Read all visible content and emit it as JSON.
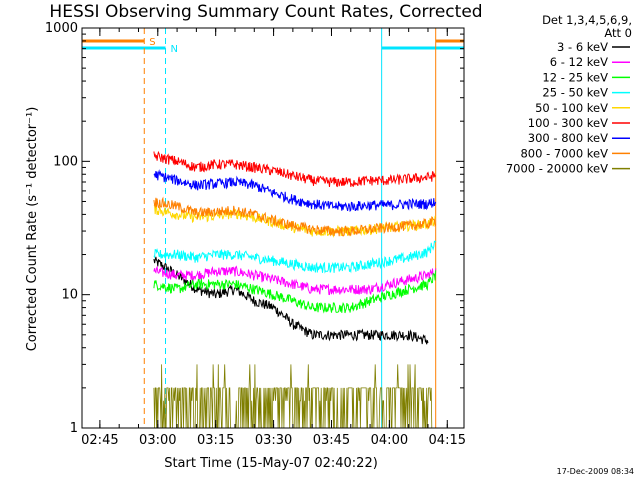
{
  "chart_data": {
    "type": "line",
    "title": "HESSI Observing Summary Count Rates, Corrected",
    "xlabel": "Start Time (15-May-07 02:40:22)",
    "ylabel": "Corrected Count Rate (s⁻¹ detector⁻¹)",
    "yscale": "log",
    "ylim": [
      1,
      1000
    ],
    "y_ticks": [
      "1",
      "10",
      "100",
      "1000"
    ],
    "xlim": [
      "02:40:22",
      "04:19:20"
    ],
    "x_ticks": [
      "02:45",
      "03:00",
      "03:15",
      "03:30",
      "03:45",
      "04:00",
      "04:15"
    ],
    "legend_header": [
      "Det 1,3,4,5,6,9,",
      "Att 0"
    ],
    "legend_placement": "right",
    "footer_date": "17-Dec-2009 08:34",
    "markers": [
      {
        "label": "S",
        "color": "#ff8000",
        "times": [
          "02:56:30",
          "04:12:00"
        ]
      },
      {
        "label": "N",
        "color": "#00e5ff",
        "times": [
          "03:02:00",
          "03:58:00"
        ]
      }
    ],
    "mode_bars": [
      {
        "color": "#ff8000",
        "segments": [
          [
            "02:40:22",
            "02:56:30"
          ],
          [
            "04:12:00",
            "04:19:20"
          ]
        ]
      },
      {
        "color": "#00e5ff",
        "segments": [
          [
            "02:40:22",
            "03:02:00"
          ],
          [
            "03:58:00",
            "04:19:20"
          ]
        ]
      }
    ],
    "series": [
      {
        "name": "3 - 6 keV",
        "color": "#000000",
        "x": [
          "02:59",
          "03:05",
          "03:10",
          "03:15",
          "03:20",
          "03:25",
          "03:30",
          "03:35",
          "03:40",
          "03:45",
          "03:50",
          "03:55",
          "04:00",
          "04:05",
          "04:10"
        ],
        "y": [
          18,
          14,
          11,
          10,
          11,
          9,
          8,
          6,
          5,
          5,
          5,
          5,
          5,
          5,
          4.5
        ]
      },
      {
        "name": "6 - 12 keV",
        "color": "#ff00ff",
        "x": [
          "02:59",
          "03:05",
          "03:10",
          "03:15",
          "03:20",
          "03:25",
          "03:30",
          "03:35",
          "03:40",
          "03:45",
          "03:50",
          "03:55",
          "04:00",
          "04:05",
          "04:10",
          "04:12"
        ],
        "y": [
          15,
          14,
          14,
          15,
          15,
          14,
          13,
          12,
          11,
          11,
          11,
          11,
          12,
          13,
          14,
          15
        ]
      },
      {
        "name": "12 - 25 keV",
        "color": "#00ff00",
        "x": [
          "02:59",
          "03:05",
          "03:10",
          "03:15",
          "03:20",
          "03:25",
          "03:30",
          "03:35",
          "03:40",
          "03:45",
          "03:50",
          "03:55",
          "04:00",
          "04:05",
          "04:10",
          "04:12"
        ],
        "y": [
          12,
          11,
          12,
          12,
          12,
          11,
          10,
          9,
          8,
          8,
          8,
          9,
          10,
          11,
          12,
          14
        ]
      },
      {
        "name": "25 - 50 keV",
        "color": "#00ffff",
        "x": [
          "02:59",
          "03:05",
          "03:10",
          "03:15",
          "03:20",
          "03:25",
          "03:30",
          "03:35",
          "03:40",
          "03:45",
          "03:50",
          "03:55",
          "04:00",
          "04:05",
          "04:10",
          "04:12"
        ],
        "y": [
          20,
          20,
          19,
          20,
          20,
          19,
          18,
          17,
          16,
          16,
          16,
          17,
          18,
          19,
          21,
          25
        ]
      },
      {
        "name": "50 - 100 keV",
        "color": "#ffd700",
        "x": [
          "02:59",
          "03:05",
          "03:10",
          "03:15",
          "03:20",
          "03:25",
          "03:30",
          "03:35",
          "03:40",
          "03:45",
          "03:50",
          "03:55",
          "04:00",
          "04:05",
          "04:10",
          "04:12"
        ],
        "y": [
          44,
          40,
          38,
          39,
          41,
          38,
          35,
          32,
          30,
          30,
          30,
          31,
          32,
          33,
          34,
          36
        ]
      },
      {
        "name": "100 - 300 keV",
        "color": "#ff0000",
        "x": [
          "02:59",
          "03:05",
          "03:10",
          "03:15",
          "03:20",
          "03:25",
          "03:30",
          "03:35",
          "03:40",
          "03:45",
          "03:50",
          "03:55",
          "04:00",
          "04:05",
          "04:10",
          "04:12"
        ],
        "y": [
          110,
          100,
          90,
          95,
          95,
          90,
          85,
          78,
          72,
          70,
          70,
          72,
          72,
          74,
          76,
          78
        ]
      },
      {
        "name": "300 - 800 keV",
        "color": "#0000ff",
        "x": [
          "02:59",
          "03:05",
          "03:10",
          "03:15",
          "03:20",
          "03:25",
          "03:30",
          "03:35",
          "03:40",
          "03:45",
          "03:50",
          "03:55",
          "04:00",
          "04:05",
          "04:10",
          "04:12"
        ],
        "y": [
          80,
          72,
          66,
          68,
          70,
          66,
          58,
          52,
          48,
          46,
          46,
          47,
          47,
          48,
          48,
          50
        ]
      },
      {
        "name": "800 - 7000 keV",
        "color": "#ff8000",
        "x": [
          "02:59",
          "03:05",
          "03:10",
          "03:15",
          "03:20",
          "03:25",
          "03:30",
          "03:35",
          "03:40",
          "03:45",
          "03:50",
          "03:55",
          "04:00",
          "04:05",
          "04:10",
          "04:12"
        ],
        "y": [
          50,
          46,
          41,
          42,
          43,
          40,
          36,
          33,
          31,
          30,
          30,
          31,
          32,
          33,
          34,
          36
        ]
      },
      {
        "name": "7000 - 20000 keV",
        "color": "#7f7f00",
        "x": [
          "02:59",
          "03:10",
          "03:20",
          "03:30",
          "03:40",
          "03:50",
          "03:58",
          "04:00",
          "04:05",
          "04:10",
          "04:11"
        ],
        "y": [
          1.5,
          1.5,
          1.5,
          1.5,
          1.5,
          1.5,
          1.5,
          2.5,
          2,
          2,
          1.5
        ]
      }
    ]
  }
}
